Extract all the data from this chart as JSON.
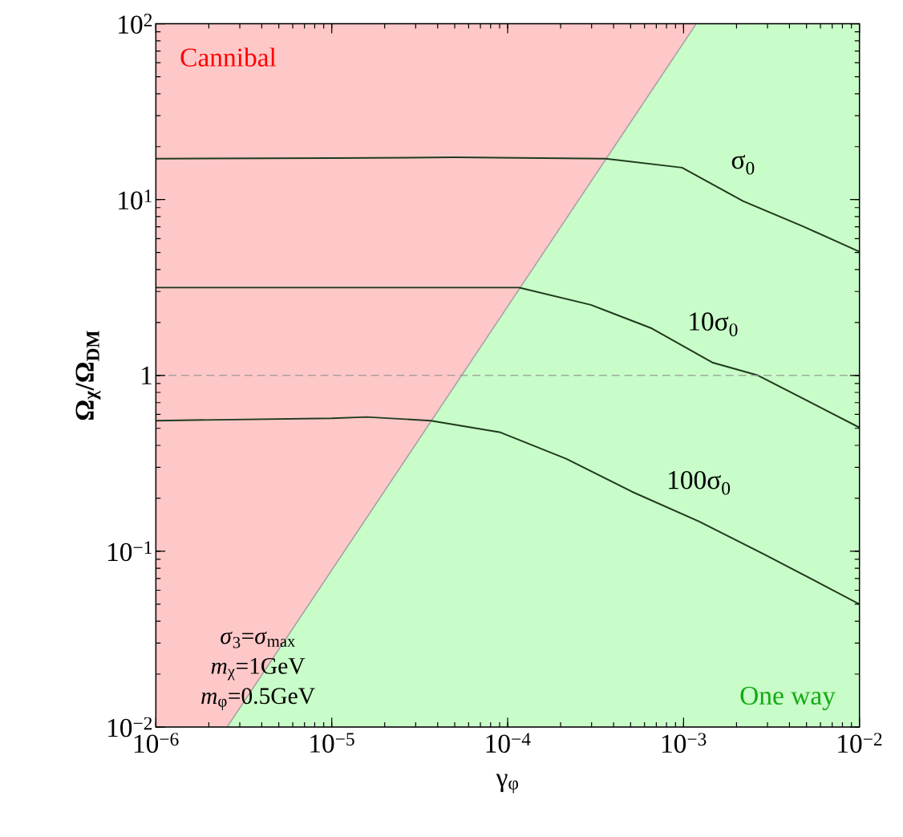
{
  "chart_data": {
    "type": "line",
    "xlabel": "γ$_{φ}$",
    "ylabel": "**Ω$_{χ}$/Ω$_{DM}$**",
    "log": "xy",
    "xlim": [
      1e-06,
      0.01
    ],
    "ylim": [
      0.01,
      100
    ],
    "xticks": [
      {
        "value": 1e-06,
        "label": "10$^{−6}$"
      },
      {
        "value": 1e-05,
        "label": "10$^{−5}$"
      },
      {
        "value": 0.0001,
        "label": "10$^{−4}$"
      },
      {
        "value": 0.001,
        "label": "10$^{−3}$"
      },
      {
        "value": 0.01,
        "label": "10$^{−2}$"
      }
    ],
    "yticks": [
      {
        "value": 0.01,
        "label": "10$^{−2}$"
      },
      {
        "value": 0.1,
        "label": "10$^{−1}$"
      },
      1,
      {
        "value": 10,
        "label": "10$^{1}$"
      },
      {
        "value": 100,
        "label": "10$^{2}$"
      }
    ],
    "series": [
      {
        "type": "area",
        "color": "#ffc8c8",
        "x": [
          1e-06,
          0.01
        ],
        "values": [
          100,
          100
        ]
      },
      {
        "type": "area",
        "color": "#c8fcc8",
        "x": [
          2.54e-06,
          0.00118,
          0.01
        ],
        "values": [
          0.01,
          100,
          100
        ]
      },
      {
        "name": "σ$_{0}$",
        "color": "#1e3a1e",
        "x": [
          1e-06,
          1e-05,
          5e-05,
          0.000362,
          0.00098,
          0.00218,
          0.00484,
          0.01
        ],
        "values": [
          17.1,
          17.2,
          17.4,
          17.1,
          15.2,
          9.8,
          7.0,
          5.05
        ]
      },
      {
        "name": "10σ$_{0}$",
        "color": "#1e3a1e",
        "x": [
          1e-06,
          1e-05,
          3.16e-05,
          0.0001156,
          0.000297,
          0.000661,
          0.00147,
          0.00265,
          0.01
        ],
        "values": [
          3.16,
          3.16,
          3.16,
          3.16,
          2.52,
          1.85,
          1.18,
          1.0,
          0.505
        ]
      },
      {
        "name": "100σ$_{0}$",
        "color": "#1e3a1e",
        "x": [
          1e-06,
          1e-05,
          1.58e-05,
          3.66e-05,
          9.1e-05,
          0.000215,
          0.000509,
          0.00122,
          0.00288,
          0.01
        ],
        "values": [
          0.553,
          0.57,
          0.58,
          0.553,
          0.474,
          0.336,
          0.218,
          0.148,
          0.096,
          0.05
        ]
      }
    ],
    "ref_lines": [
      {
        "axis": "y",
        "value": 1,
        "color": "#909090",
        "line_style": "dashed"
      }
    ],
    "annotations": [
      "Cannibal",
      "One way",
      "*σ*$_{3}$=*σ*$_{max}$",
      "*m*$_{χ}$=1GeV",
      "*m*$_{φ}$=0.5GeV"
    ]
  }
}
